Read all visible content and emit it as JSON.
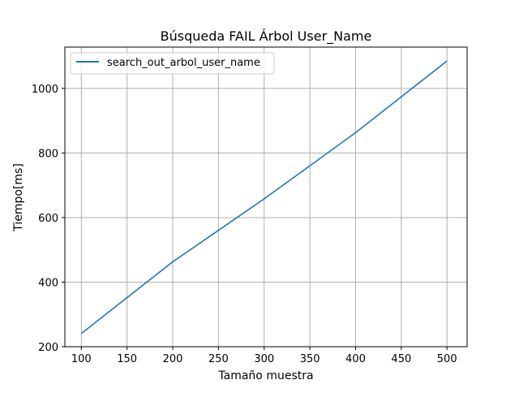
{
  "chart_data": {
    "type": "line",
    "title": "Búsqueda FAIL Árbol User_Name",
    "xlabel": "Tamaño muestra",
    "ylabel": "Tiempo[ms]",
    "xlim": [
      82,
      522
    ],
    "ylim": [
      200,
      1128
    ],
    "xticks": [
      100,
      150,
      200,
      250,
      300,
      350,
      400,
      450,
      500
    ],
    "yticks": [
      200,
      400,
      600,
      800,
      1000
    ],
    "grid": true,
    "legend_position": "top-left",
    "series": [
      {
        "name": "search_out_arbol_user_name",
        "color": "#1f77b4",
        "x": [
          100,
          200,
          300,
          400,
          500
        ],
        "y": [
          241,
          463,
          658,
          863,
          1085
        ]
      }
    ]
  }
}
